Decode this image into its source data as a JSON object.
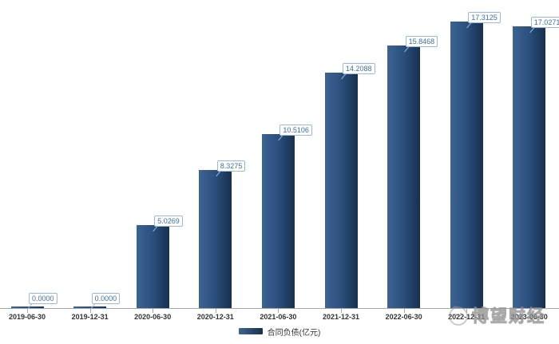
{
  "chart_data": {
    "type": "bar",
    "title": "",
    "xlabel": "",
    "ylabel": "",
    "categories": [
      "2019-06-30",
      "2019-12-31",
      "2020-06-30",
      "2020-12-31",
      "2021-06-30",
      "2021-12-31",
      "2022-06-30",
      "2022-12-31",
      "2023-06-30"
    ],
    "series": [
      {
        "name": "合同负债(亿元)",
        "values": [
          0.0,
          0.0,
          5.0269,
          8.3275,
          10.5106,
          14.2088,
          15.8468,
          17.3125,
          17.0271
        ]
      }
    ],
    "value_labels": [
      "0.0000",
      "0.0000",
      "5.0269",
      "8.3275",
      "10.5106",
      "14.2088",
      "15.8468",
      "17.3125",
      "17.0271"
    ],
    "ylim": [
      0,
      17.5
    ],
    "grid": false,
    "y_axis_shown": false,
    "legend_position": "bottom",
    "colors": {
      "bar_gradient_left": "#3d6494",
      "bar_gradient_right": "#16314f",
      "value_label_text": "#3e6fa6",
      "value_label_border": "#9db9d8",
      "axis_line": "#a6a6a6",
      "axis_label_text": "#333333"
    }
  },
  "legend": {
    "label": "合同负债(亿元)"
  },
  "watermark": {
    "text": "博望财经",
    "icon": "face-logo-icon"
  }
}
